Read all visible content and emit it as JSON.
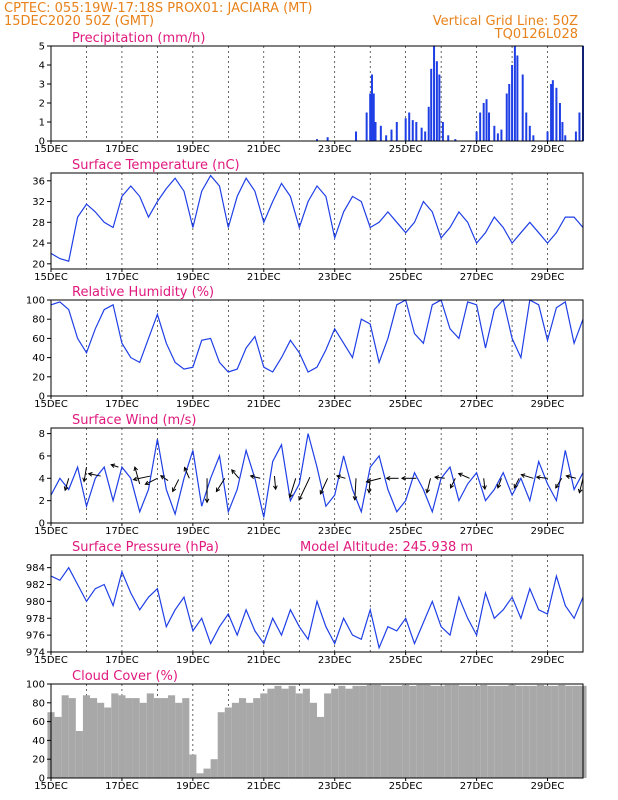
{
  "header": {
    "line1": "CPTEC:   055:19W-17:18S   PROX01: JACIARA (MT)",
    "line2": "15DEC2020 50Z (GMT)",
    "grid_note": "Vertical Grid Line: 50Z",
    "code": "TQ0126L028"
  },
  "colors": {
    "header": "#e8821a",
    "title": "#e0197d",
    "series": "#1f3fe6",
    "cloud": "#a8a8a8",
    "arrow": "#000000"
  },
  "chart_data": [
    {
      "type": "bar",
      "title": "Precipitation  (mm/h)",
      "ylim": [
        0,
        5
      ],
      "yticks": [
        0,
        1,
        2,
        3,
        4,
        5
      ],
      "x_domain": [
        0,
        15
      ],
      "xticklabels": [
        "15DEC",
        "17DEC",
        "19DEC",
        "21DEC",
        "23DEC",
        "25DEC",
        "27DEC",
        "29DEC"
      ],
      "grid": "dashed",
      "bars": [
        [
          7.5,
          0.1
        ],
        [
          7.8,
          0.2
        ],
        [
          8.6,
          0.5
        ],
        [
          8.9,
          1.5
        ],
        [
          9.0,
          2.5
        ],
        [
          9.05,
          3.5
        ],
        [
          9.1,
          2.5
        ],
        [
          9.15,
          1.0
        ],
        [
          9.3,
          0.8
        ],
        [
          9.45,
          0.3
        ],
        [
          9.6,
          0.6
        ],
        [
          9.75,
          1.0
        ],
        [
          10.0,
          1.2
        ],
        [
          10.1,
          1.5
        ],
        [
          10.2,
          1.1
        ],
        [
          10.3,
          1.0
        ],
        [
          10.45,
          0.7
        ],
        [
          10.55,
          0.5
        ],
        [
          10.65,
          1.8
        ],
        [
          10.72,
          3.8
        ],
        [
          10.8,
          5.0
        ],
        [
          10.88,
          4.2
        ],
        [
          10.95,
          3.5
        ],
        [
          11.05,
          1.0
        ],
        [
          11.2,
          0.3
        ],
        [
          11.4,
          0.1
        ],
        [
          12.0,
          0.5
        ],
        [
          12.1,
          1.5
        ],
        [
          12.2,
          2.0
        ],
        [
          12.28,
          2.2
        ],
        [
          12.35,
          1.5
        ],
        [
          12.5,
          0.8
        ],
        [
          12.6,
          0.4
        ],
        [
          12.7,
          0.6
        ],
        [
          12.85,
          2.5
        ],
        [
          12.92,
          3.0
        ],
        [
          13.0,
          4.0
        ],
        [
          13.08,
          5.0
        ],
        [
          13.15,
          4.5
        ],
        [
          13.3,
          3.5
        ],
        [
          13.4,
          1.5
        ],
        [
          13.5,
          0.8
        ],
        [
          13.6,
          0.3
        ],
        [
          14.0,
          0.5
        ],
        [
          14.1,
          3.0
        ],
        [
          14.15,
          3.2
        ],
        [
          14.25,
          2.8
        ],
        [
          14.35,
          2.0
        ],
        [
          14.42,
          1.0
        ],
        [
          14.5,
          0.3
        ],
        [
          14.8,
          0.5
        ],
        [
          14.9,
          1.5
        ],
        [
          15.0,
          5.0
        ]
      ]
    },
    {
      "type": "line",
      "title": "Surface Temperature (nC)",
      "ylim": [
        19,
        37.5
      ],
      "yticks": [
        20,
        24,
        28,
        32,
        36
      ],
      "x_domain": [
        0,
        15
      ],
      "xticklabels": [
        "15DEC",
        "17DEC",
        "19DEC",
        "21DEC",
        "23DEC",
        "25DEC",
        "27DEC",
        "29DEC"
      ],
      "grid": "dashed",
      "x": [
        0,
        0.25,
        0.5,
        0.75,
        1.0,
        1.25,
        1.5,
        1.75,
        2.0,
        2.25,
        2.5,
        2.75,
        3.0,
        3.25,
        3.5,
        3.75,
        4.0,
        4.25,
        4.5,
        4.75,
        5.0,
        5.25,
        5.5,
        5.75,
        6.0,
        6.25,
        6.5,
        6.75,
        7.0,
        7.25,
        7.5,
        7.75,
        8.0,
        8.25,
        8.5,
        8.75,
        9.0,
        9.25,
        9.5,
        9.75,
        10.0,
        10.25,
        10.5,
        10.75,
        11.0,
        11.25,
        11.5,
        11.75,
        12.0,
        12.25,
        12.5,
        12.75,
        13.0,
        13.25,
        13.5,
        13.75,
        14.0,
        14.25,
        14.5,
        14.75,
        15.0
      ],
      "y": [
        22,
        21,
        20.5,
        29,
        31.5,
        30,
        28,
        27,
        33,
        35,
        33,
        29,
        32,
        34.5,
        36.5,
        34,
        27,
        34,
        37,
        35,
        27,
        33,
        36.5,
        34,
        28,
        32,
        35.5,
        33,
        27,
        32,
        35,
        33,
        25,
        30,
        33,
        32,
        27,
        28,
        30,
        28,
        26,
        28,
        32,
        30,
        25,
        27,
        30,
        28,
        24,
        26,
        29,
        27,
        24,
        26,
        28,
        26,
        24,
        26,
        29,
        29,
        27
      ]
    },
    {
      "type": "line",
      "title": "Relative Humidity (%)",
      "ylim": [
        0,
        100
      ],
      "yticks": [
        0,
        20,
        40,
        60,
        80,
        100
      ],
      "x_domain": [
        0,
        15
      ],
      "xticklabels": [
        "15DEC",
        "17DEC",
        "19DEC",
        "21DEC",
        "23DEC",
        "25DEC",
        "27DEC",
        "29DEC"
      ],
      "grid": "dashed",
      "x": [
        0,
        0.25,
        0.5,
        0.75,
        1.0,
        1.25,
        1.5,
        1.75,
        2.0,
        2.25,
        2.5,
        2.75,
        3.0,
        3.25,
        3.5,
        3.75,
        4.0,
        4.25,
        4.5,
        4.75,
        5.0,
        5.25,
        5.5,
        5.75,
        6.0,
        6.25,
        6.5,
        6.75,
        7.0,
        7.25,
        7.5,
        7.75,
        8.0,
        8.25,
        8.5,
        8.75,
        9.0,
        9.25,
        9.5,
        9.75,
        10.0,
        10.25,
        10.5,
        10.75,
        11.0,
        11.25,
        11.5,
        11.75,
        12.0,
        12.25,
        12.5,
        12.75,
        13.0,
        13.25,
        13.5,
        13.75,
        14.0,
        14.25,
        14.5,
        14.75,
        15.0
      ],
      "y": [
        95,
        98,
        90,
        60,
        45,
        70,
        90,
        95,
        55,
        40,
        35,
        60,
        85,
        55,
        35,
        28,
        30,
        58,
        60,
        35,
        25,
        28,
        50,
        62,
        30,
        25,
        40,
        58,
        45,
        25,
        30,
        48,
        70,
        55,
        40,
        80,
        75,
        35,
        60,
        95,
        100,
        65,
        55,
        95,
        100,
        70,
        60,
        98,
        95,
        50,
        90,
        100,
        60,
        40,
        100,
        95,
        58,
        92,
        98,
        55,
        80
      ]
    },
    {
      "type": "line",
      "title": "Surface Wind  (m/s)",
      "ylim": [
        0,
        8.5
      ],
      "yticks": [
        0,
        2,
        4,
        6,
        8
      ],
      "x_domain": [
        0,
        15
      ],
      "xticklabels": [
        "15DEC",
        "17DEC",
        "19DEC",
        "21DEC",
        "23DEC",
        "25DEC",
        "27DEC",
        "29DEC"
      ],
      "grid": "dashed",
      "x": [
        0,
        0.25,
        0.5,
        0.75,
        1.0,
        1.25,
        1.5,
        1.75,
        2.0,
        2.25,
        2.5,
        2.75,
        3.0,
        3.25,
        3.5,
        3.75,
        4.0,
        4.25,
        4.5,
        4.75,
        5.0,
        5.25,
        5.5,
        5.75,
        6.0,
        6.25,
        6.5,
        6.75,
        7.0,
        7.25,
        7.5,
        7.75,
        8.0,
        8.25,
        8.5,
        8.75,
        9.0,
        9.25,
        9.5,
        9.75,
        10.0,
        10.25,
        10.5,
        10.75,
        11.0,
        11.25,
        11.5,
        11.75,
        12.0,
        12.25,
        12.5,
        12.75,
        13.0,
        13.25,
        13.5,
        13.75,
        14.0,
        14.25,
        14.5,
        14.75,
        15.0
      ],
      "y": [
        2.5,
        4,
        3,
        5,
        1.5,
        4,
        5,
        2,
        5,
        4,
        1,
        3,
        7.5,
        3,
        0.8,
        4,
        6.5,
        1.5,
        4,
        6,
        1,
        3,
        6.5,
        4,
        0.5,
        5.5,
        7,
        2,
        3.5,
        8,
        5,
        1.5,
        2.5,
        6,
        3,
        1,
        5,
        6,
        3,
        1,
        2,
        4.5,
        3,
        1,
        4,
        5,
        2,
        3.5,
        4.5,
        2,
        3,
        4.5,
        2.5,
        4,
        2,
        5.5,
        3.5,
        2,
        6.5,
        3,
        4.5
      ],
      "arrows": [
        [
          0.5,
          4,
          -0.3,
          -1
        ],
        [
          1.0,
          5,
          -0.2,
          -1.2
        ],
        [
          1.4,
          4.2,
          -1,
          0.2
        ],
        [
          1.9,
          5,
          -0.6,
          0.2
        ],
        [
          2.5,
          3.5,
          -0.4,
          1.4
        ],
        [
          2.8,
          4.2,
          -1.4,
          -0.3
        ],
        [
          3.0,
          4,
          -1,
          -0.5
        ],
        [
          3.3,
          3.8,
          -0.6,
          0.4
        ],
        [
          3.6,
          3.9,
          -0.5,
          -1
        ],
        [
          3.9,
          4,
          -0.4,
          0.9
        ],
        [
          4.4,
          4,
          0,
          -2
        ],
        [
          4.9,
          4,
          -0.7,
          -1.1
        ],
        [
          5.3,
          4,
          -0.6,
          0.7
        ],
        [
          5.9,
          4,
          -0.8,
          0.2
        ],
        [
          6.3,
          4.2,
          0.1,
          -1.1
        ],
        [
          6.9,
          4,
          -0.5,
          -1.6
        ],
        [
          7.3,
          4.1,
          -0.9,
          -1.9
        ],
        [
          7.8,
          4,
          -0.6,
          -1.3
        ],
        [
          8.3,
          4,
          -0.7,
          0.2
        ],
        [
          8.6,
          4,
          -0.1,
          -1.8
        ],
        [
          9.0,
          4,
          -0.1,
          -1.2
        ],
        [
          9.3,
          4,
          -1.2,
          -0.3
        ],
        [
          9.8,
          4,
          -1,
          0
        ],
        [
          10.3,
          4,
          -1.2,
          0
        ],
        [
          10.7,
          4,
          -0.3,
          -1.2
        ],
        [
          11.1,
          4,
          -0.8,
          0.1
        ],
        [
          11.4,
          4,
          -0.4,
          -0.8
        ],
        [
          11.8,
          4,
          -0.9,
          0.4
        ],
        [
          12.2,
          4,
          0.1,
          -0.9
        ],
        [
          12.7,
          4,
          -0.3,
          -0.8
        ],
        [
          13.2,
          4,
          -0.4,
          -0.8
        ],
        [
          13.6,
          4,
          -1,
          0.3
        ],
        [
          14.0,
          4,
          -0.9,
          0.1
        ],
        [
          14.4,
          4,
          -0.5,
          -0.8
        ],
        [
          14.8,
          4,
          -0.8,
          0.2
        ],
        [
          15.0,
          4,
          -0.3,
          -1.2
        ]
      ]
    },
    {
      "type": "line",
      "title": "Surface Pressure (hPa)",
      "annotation": "Model Altitude: 245.938  m",
      "ylim": [
        974,
        985.5
      ],
      "yticks": [
        974,
        976,
        978,
        980,
        982,
        984
      ],
      "x_domain": [
        0,
        15
      ],
      "xticklabels": [
        "15DEC",
        "17DEC",
        "19DEC",
        "21DEC",
        "23DEC",
        "25DEC",
        "27DEC",
        "29DEC"
      ],
      "grid": "dashed",
      "x": [
        0,
        0.25,
        0.5,
        0.75,
        1.0,
        1.25,
        1.5,
        1.75,
        2.0,
        2.25,
        2.5,
        2.75,
        3.0,
        3.25,
        3.5,
        3.75,
        4.0,
        4.25,
        4.5,
        4.75,
        5.0,
        5.25,
        5.5,
        5.75,
        6.0,
        6.25,
        6.5,
        6.75,
        7.0,
        7.25,
        7.5,
        7.75,
        8.0,
        8.25,
        8.5,
        8.75,
        9.0,
        9.25,
        9.5,
        9.75,
        10.0,
        10.25,
        10.5,
        10.75,
        11.0,
        11.25,
        11.5,
        11.75,
        12.0,
        12.25,
        12.5,
        12.75,
        13.0,
        13.25,
        13.5,
        13.75,
        14.0,
        14.25,
        14.5,
        14.75,
        15.0
      ],
      "y": [
        983,
        982.5,
        984,
        982,
        980,
        981.5,
        982,
        979.5,
        983.5,
        981,
        979,
        980.5,
        981.5,
        977,
        979,
        980.5,
        976.5,
        978,
        975,
        977,
        978.5,
        976,
        979,
        976.5,
        975,
        978,
        976,
        979,
        977,
        975.5,
        980,
        977,
        975,
        978,
        976,
        975.5,
        979,
        974.5,
        977,
        976.5,
        978,
        975,
        977.5,
        980,
        977,
        976,
        980.5,
        978,
        976,
        981,
        978,
        979,
        980.5,
        978,
        981.5,
        979,
        978.5,
        983,
        979.5,
        978,
        980.5
      ]
    },
    {
      "type": "bar",
      "title": "Cloud Cover (%)",
      "ylim": [
        0,
        100
      ],
      "yticks": [
        0,
        20,
        40,
        60,
        80,
        100
      ],
      "x_domain": [
        0,
        15
      ],
      "xticklabels": [
        "15DEC",
        "17DEC",
        "19DEC",
        "21DEC",
        "23DEC",
        "25DEC",
        "27DEC",
        "29DEC"
      ],
      "grid": "dashed",
      "x": [
        0,
        0.2,
        0.4,
        0.6,
        0.8,
        1.0,
        1.2,
        1.4,
        1.6,
        1.8,
        2.0,
        2.2,
        2.4,
        2.6,
        2.8,
        3.0,
        3.2,
        3.4,
        3.6,
        3.8,
        4.0,
        4.2,
        4.4,
        4.6,
        4.8,
        5.0,
        5.2,
        5.4,
        5.6,
        5.8,
        6.0,
        6.2,
        6.4,
        6.6,
        6.8,
        7.0,
        7.2,
        7.4,
        7.6,
        7.8,
        8.0,
        8.2,
        8.4,
        8.6,
        8.8,
        9.0,
        9.2,
        9.4,
        9.6,
        9.8,
        10.0,
        10.2,
        10.4,
        10.6,
        10.8,
        11.0,
        11.2,
        11.4,
        11.6,
        11.8,
        12.0,
        12.2,
        12.4,
        12.6,
        12.8,
        13.0,
        13.2,
        13.4,
        13.6,
        13.8,
        14.0,
        14.2,
        14.4,
        14.6,
        14.8,
        15.0
      ],
      "y": [
        70,
        65,
        88,
        85,
        50,
        88,
        85,
        80,
        75,
        90,
        88,
        85,
        85,
        80,
        90,
        85,
        85,
        88,
        80,
        85,
        25,
        5,
        10,
        20,
        70,
        75,
        80,
        85,
        80,
        85,
        90,
        95,
        98,
        95,
        98,
        90,
        95,
        80,
        65,
        90,
        95,
        98,
        95,
        98,
        98,
        99,
        99,
        98,
        98,
        98,
        99,
        98,
        99,
        99,
        98,
        98,
        99,
        99,
        98,
        98,
        98,
        99,
        98,
        98,
        98,
        99,
        98,
        98,
        98,
        99,
        98,
        98,
        99,
        98,
        98,
        98
      ]
    }
  ]
}
